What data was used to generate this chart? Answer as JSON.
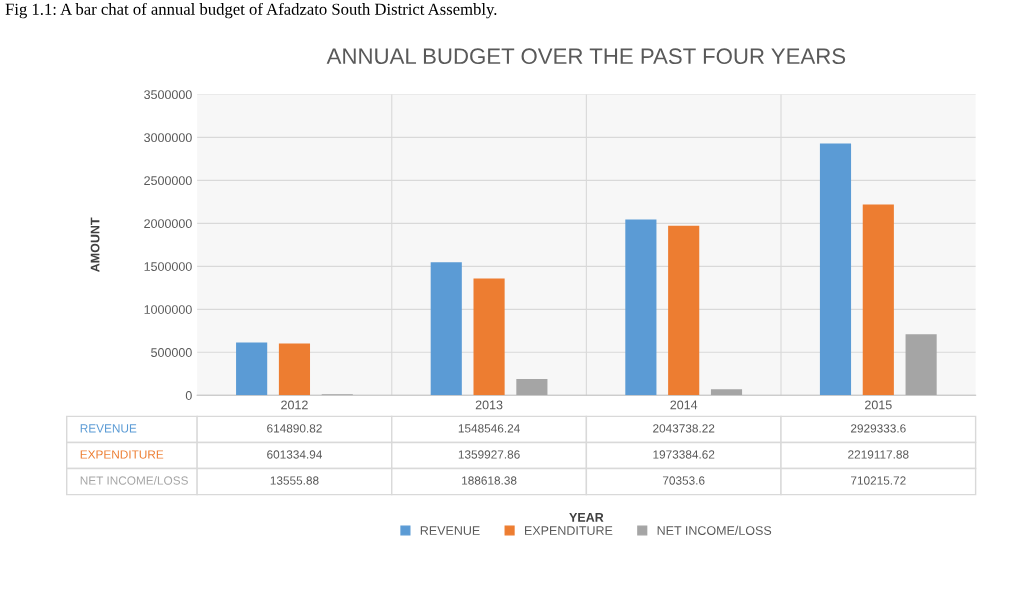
{
  "chart_data": {
    "type": "bar",
    "title": "ANNUAL BUDGET OVER THE PAST FOUR YEARS",
    "ylabel": "AMOUNT",
    "annotations": [
      "Fig 1.1: A bar chat of annual budget of Afadzato South District Assembly.",
      "YEAR"
    ],
    "categories": [
      "2012",
      "2013",
      "2014",
      "2015"
    ],
    "series": [
      {
        "name": "REVENUE",
        "color": "#5b9bd5",
        "values": [
          614890.82,
          1548546.24,
          2043738.22,
          2929333.6
        ]
      },
      {
        "name": "EXPENDITURE",
        "color": "#ed7d31",
        "values": [
          601334.94,
          1359927.86,
          1973384.62,
          2219117.88
        ]
      },
      {
        "name": "NET INCOME/LOSS",
        "color": "#a5a5a5",
        "values": [
          13555.88,
          188618.38,
          70353.6,
          710215.72
        ]
      }
    ],
    "ylim": [
      0,
      3500000
    ],
    "yticks": [
      0,
      500000,
      1000000,
      1500000,
      2000000,
      2500000,
      3000000,
      3500000
    ],
    "grid": "y",
    "legend": "bottom",
    "data_labels": true
  }
}
